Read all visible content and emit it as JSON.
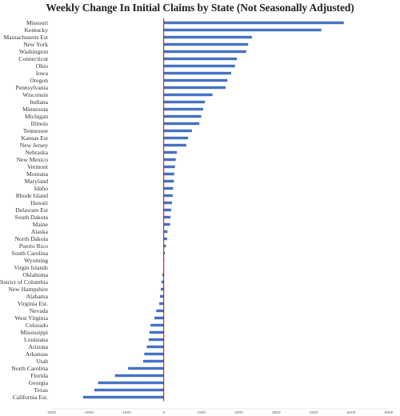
{
  "chart_data": {
    "type": "bar",
    "orientation": "horizontal",
    "title": "Weekly Change In Initial Claims by State (Not Seasonally Adjusted)",
    "xlabel": "",
    "ylabel": "",
    "xlim": [
      -3000,
      6000
    ],
    "xticks": [
      -3000,
      -2000,
      -1000,
      0,
      1000,
      2000,
      3000,
      4000,
      5000,
      6000
    ],
    "grid": false,
    "bar_color": "#4472c4",
    "zero_line_color": "#cc0000",
    "categories": [
      "Missouri",
      "Kentucky",
      "Massachusetts Est",
      "New York",
      "Washington",
      "Connecticut",
      "Ohio",
      "Iowa",
      "Oregon",
      "Pennsylvania",
      "Wisconsin",
      "Indiana",
      "Minnesota",
      "Michigan",
      "Illinois",
      "Tennessee",
      "Kansas Est",
      "New Jersey",
      "Nebraska",
      "New Mexico",
      "Vermont",
      "Montana",
      "Maryland",
      "Idaho",
      "Rhode Island",
      "Hawaii",
      "Delaware Est",
      "South Dakota",
      "Maine",
      "Alaska",
      "North Dakota",
      "Puerto Rico",
      "South Carolina",
      "Wyoming",
      "Virgin Islands",
      "Oklahoma",
      "District of Columbia",
      "New Hampshire",
      "Alabama",
      "Virginia Est.",
      "Nevada",
      "West Virginia",
      "Colorado",
      "Mississippi",
      "Louisiana",
      "Arizona",
      "Arkansas",
      "Utah",
      "North Carolina",
      "Florida",
      "Georgia",
      "Texas",
      "California Est."
    ],
    "values": [
      4800,
      4200,
      2350,
      2250,
      2200,
      1950,
      1900,
      1800,
      1700,
      1650,
      1300,
      1100,
      1050,
      1000,
      950,
      750,
      650,
      600,
      350,
      320,
      300,
      280,
      270,
      250,
      240,
      220,
      200,
      180,
      170,
      100,
      90,
      60,
      30,
      10,
      0,
      -40,
      -60,
      -80,
      -100,
      -120,
      -200,
      -250,
      -350,
      -380,
      -400,
      -450,
      -520,
      -550,
      -950,
      -1300,
      -1750,
      -1850,
      -2150
    ]
  }
}
